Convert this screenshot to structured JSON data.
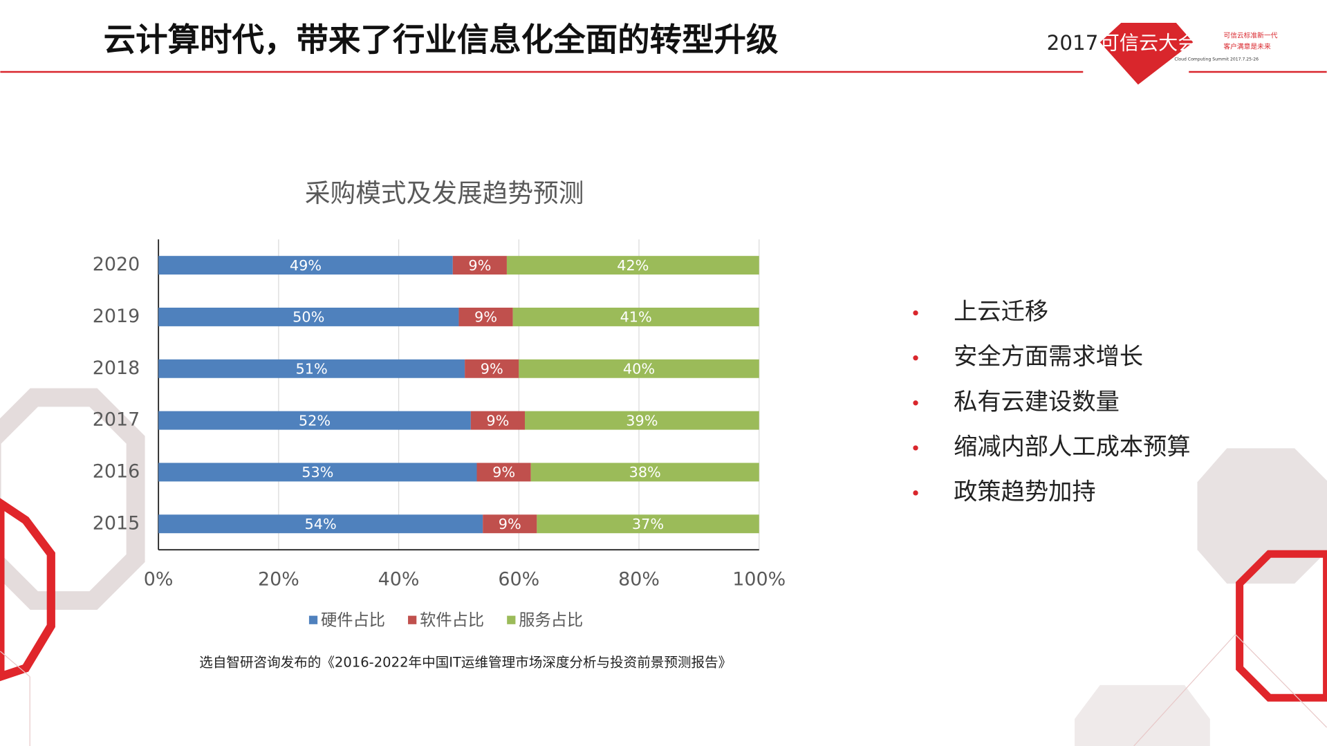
{
  "header": {
    "title": "云计算时代，带来了行业信息化全面的转型升级"
  },
  "logo": {
    "year": "2017",
    "name": "可信云大会",
    "tagline_1": "可信云标准新一代",
    "tagline_2": "客户满意是未来",
    "english": "Cloud Computing Summit 2017.7.25-26"
  },
  "chart_data": {
    "type": "stacked-bar-horizontal",
    "title": "采购模式及发展趋势预测",
    "categories": [
      "2020",
      "2019",
      "2018",
      "2017",
      "2016",
      "2015"
    ],
    "series": [
      {
        "name": "硬件占比",
        "color": "#4f81bd",
        "values": [
          49,
          50,
          51,
          52,
          53,
          54
        ],
        "value_labels": [
          "49%",
          "50%",
          "51%",
          "52%",
          "53%",
          "54%"
        ]
      },
      {
        "name": "软件占比",
        "color": "#c0504d",
        "values": [
          9,
          9,
          9,
          9,
          9,
          9
        ],
        "value_labels": [
          "9%",
          "9%",
          "9%",
          "9%",
          "9%",
          "9%"
        ]
      },
      {
        "name": "服务占比",
        "color": "#9bbb59",
        "values": [
          42,
          41,
          40,
          39,
          38,
          37
        ],
        "value_labels": [
          "42%",
          "41%",
          "40%",
          "39%",
          "38%",
          "37%"
        ]
      }
    ],
    "xlim": [
      0,
      100
    ],
    "xticks": [
      {
        "value": 0,
        "label": "0%"
      },
      {
        "value": 20,
        "label": "20%"
      },
      {
        "value": 40,
        "label": "40%"
      },
      {
        "value": 60,
        "label": "60%"
      },
      {
        "value": 80,
        "label": "80%"
      },
      {
        "value": 100,
        "label": "100%"
      }
    ],
    "grid": true
  },
  "source": "选自智研咨询发布的《2016-2022年中国IT运维管理市场深度分析与投资前景预测报告》",
  "bullets": [
    "上云迁移",
    "安全方面需求增长",
    "私有云建设数量",
    "缩减内部人工成本预算",
    "政策趋势加持"
  ]
}
